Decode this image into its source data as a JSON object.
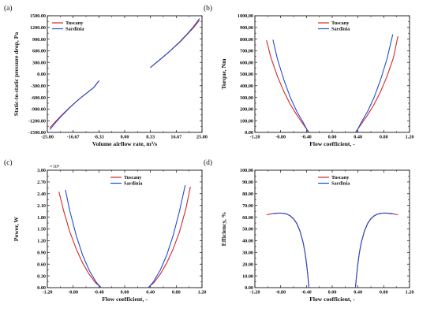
{
  "colors": {
    "tuscany": "#d62728",
    "sardinia": "#1f4fd1",
    "axis": "#111111"
  },
  "chart_data": [
    {
      "type": "line",
      "panel_label": "(a)",
      "xlabel": "Volume airflow rate, m³/s",
      "ylabel": "Static-to-static pressure drop, Pa",
      "xlim": [
        -25,
        25
      ],
      "ylim": [
        -1500,
        1500
      ],
      "x_ticks": [
        "-25.00",
        "-16.67",
        "-8.33",
        "0.00",
        "8.33",
        "16.67",
        "25.00"
      ],
      "y_ticks": [
        "-1500.00",
        "-1200.00",
        "-900.00",
        "-600.00",
        "-300.00",
        "0.00",
        "300.00",
        "600.00",
        "900.00",
        "1200.00",
        "1500.00"
      ],
      "legend": "top-left",
      "series": [
        {
          "name": "Tuscany",
          "color_key": "tuscany",
          "x": [
            -24.2,
            -22,
            -20,
            -18,
            -16,
            -14,
            -12,
            -10,
            -8.3,
            8.3,
            10,
            12,
            14,
            16,
            18,
            20,
            22,
            24.2
          ],
          "y": [
            -1380,
            -1190,
            -1030,
            -875,
            -730,
            -595,
            -470,
            -345,
            -170,
            165,
            280,
            410,
            545,
            690,
            835,
            1000,
            1170,
            1385
          ]
        },
        {
          "name": "Sardinia",
          "color_key": "sardinia",
          "x": [
            -24.2,
            -22,
            -20,
            -18,
            -16,
            -14,
            -12,
            -10,
            -8.3,
            8.3,
            10,
            12,
            14,
            16,
            18,
            20,
            22,
            24.2
          ],
          "y": [
            -1430,
            -1215,
            -1045,
            -885,
            -735,
            -598,
            -472,
            -347,
            -172,
            167,
            282,
            412,
            548,
            695,
            845,
            1015,
            1195,
            1430
          ]
        }
      ]
    },
    {
      "type": "line",
      "panel_label": "(b)",
      "xlabel": "Flow coefficient, -",
      "ylabel": "Torque, Nm",
      "xlim": [
        -1.2,
        1.2
      ],
      "ylim": [
        0,
        1000
      ],
      "x_ticks": [
        "-1.20",
        "-0.80",
        "-0.40",
        "0.00",
        "0.40",
        "0.80",
        "1.20"
      ],
      "y_ticks": [
        "0.00",
        "100,00",
        "200,00",
        "300,00",
        "400,00",
        "500,00",
        "600,00",
        "700,00",
        "800,00",
        "900,00",
        "1000,00"
      ],
      "legend": "top-center",
      "series": [
        {
          "name": "Tuscany",
          "color_key": "tuscany",
          "x": [
            -1.02,
            -0.95,
            -0.85,
            -0.75,
            -0.65,
            -0.55,
            -0.45,
            -0.36,
            0.36,
            0.45,
            0.55,
            0.65,
            0.75,
            0.85,
            0.95,
            1.02
          ],
          "y": [
            790,
            640,
            480,
            350,
            240,
            150,
            70,
            0,
            0,
            70,
            150,
            240,
            350,
            480,
            640,
            825
          ]
        },
        {
          "name": "Sardinia",
          "color_key": "sardinia",
          "x": [
            -0.92,
            -0.85,
            -0.75,
            -0.65,
            -0.55,
            -0.45,
            -0.37,
            0.37,
            0.45,
            0.55,
            0.65,
            0.75,
            0.85,
            0.94
          ],
          "y": [
            795,
            630,
            450,
            300,
            180,
            85,
            0,
            0,
            85,
            180,
            300,
            450,
            630,
            840
          ]
        }
      ]
    },
    {
      "type": "line",
      "panel_label": "(c)",
      "xlabel": "Flow coefficient, -",
      "ylabel": "Power, W",
      "axis_multiplier": "×10⁴",
      "xlim": [
        -1.2,
        1.2
      ],
      "ylim": [
        0,
        3.0
      ],
      "x_ticks": [
        "-1.20",
        "-0.80",
        "-0.40",
        "0.00",
        "0.40",
        "0.80",
        "1.20"
      ],
      "y_ticks": [
        "0.00",
        "0.30",
        "0.60",
        "0.90",
        "1.20",
        "1.50",
        "1.80",
        "2.10",
        "2.40",
        "2.70",
        "3.00"
      ],
      "legend": "top-center",
      "series": [
        {
          "name": "Tuscany",
          "color_key": "tuscany",
          "x": [
            -1.02,
            -0.95,
            -0.85,
            -0.75,
            -0.65,
            -0.55,
            -0.45,
            -0.36,
            0.36,
            0.45,
            0.55,
            0.65,
            0.75,
            0.85,
            0.95,
            1.02
          ],
          "y": [
            2.45,
            1.98,
            1.42,
            0.98,
            0.62,
            0.34,
            0.12,
            0,
            0,
            0.12,
            0.34,
            0.62,
            0.98,
            1.42,
            2.02,
            2.58
          ]
        },
        {
          "name": "Sardinia",
          "color_key": "sardinia",
          "x": [
            -0.92,
            -0.85,
            -0.75,
            -0.65,
            -0.55,
            -0.45,
            -0.37,
            0.37,
            0.45,
            0.55,
            0.65,
            0.75,
            0.85,
            0.94
          ],
          "y": [
            2.5,
            1.95,
            1.32,
            0.82,
            0.44,
            0.16,
            0,
            0,
            0.16,
            0.44,
            0.82,
            1.32,
            1.95,
            2.62
          ]
        }
      ]
    },
    {
      "type": "line",
      "panel_label": "(d)",
      "xlabel": "Flow coefficient, -",
      "ylabel": "Efficiency, %",
      "xlim": [
        -1.2,
        1.2
      ],
      "ylim": [
        0,
        100
      ],
      "x_ticks": [
        "-1.20",
        "-0.80",
        "-0.40",
        "0.00",
        "0.40",
        "0.80",
        "1.20"
      ],
      "y_ticks": [
        "0.00",
        "10.00",
        "20.00",
        "30.00",
        "40.00",
        "50.00",
        "60.00",
        "70.00",
        "80.00",
        "90.00",
        "100.00"
      ],
      "legend": "top-center",
      "series": [
        {
          "name": "Tuscany",
          "color_key": "tuscany",
          "x": [
            -1.02,
            -0.95,
            -0.9,
            -0.85,
            -0.8,
            -0.75,
            -0.7,
            -0.65,
            -0.6,
            -0.55,
            -0.5,
            -0.45,
            -0.42,
            -0.4,
            -0.38,
            -0.36,
            0.36,
            0.38,
            0.4,
            0.42,
            0.45,
            0.5,
            0.55,
            0.6,
            0.65,
            0.7,
            0.75,
            0.8,
            0.85,
            0.9,
            0.95,
            1.02
          ],
          "y": [
            62,
            62.8,
            63.3,
            63.5,
            63.5,
            63.2,
            62.5,
            61,
            58.5,
            54.5,
            48,
            38,
            29,
            21,
            11,
            0,
            0,
            11,
            21,
            29,
            38,
            48,
            54.5,
            58.5,
            61,
            62.5,
            63.2,
            63.5,
            63.5,
            63.3,
            62.8,
            62
          ]
        },
        {
          "name": "Sardinia",
          "color_key": "sardinia",
          "x": [
            -0.92,
            -0.85,
            -0.8,
            -0.75,
            -0.7,
            -0.65,
            -0.6,
            -0.55,
            -0.5,
            -0.45,
            -0.42,
            -0.4,
            -0.38,
            -0.36,
            0.36,
            0.38,
            0.4,
            0.42,
            0.45,
            0.5,
            0.55,
            0.6,
            0.65,
            0.7,
            0.75,
            0.8,
            0.85,
            0.94
          ],
          "y": [
            63,
            63.4,
            63.5,
            63.3,
            62.6,
            61.2,
            58.8,
            54.8,
            48.3,
            38.3,
            29.3,
            21.3,
            11.3,
            0,
            0,
            11.3,
            21.3,
            29.3,
            38.3,
            48.3,
            54.8,
            58.8,
            61.2,
            62.6,
            63.3,
            63.5,
            63.4,
            62.8
          ]
        }
      ]
    }
  ]
}
